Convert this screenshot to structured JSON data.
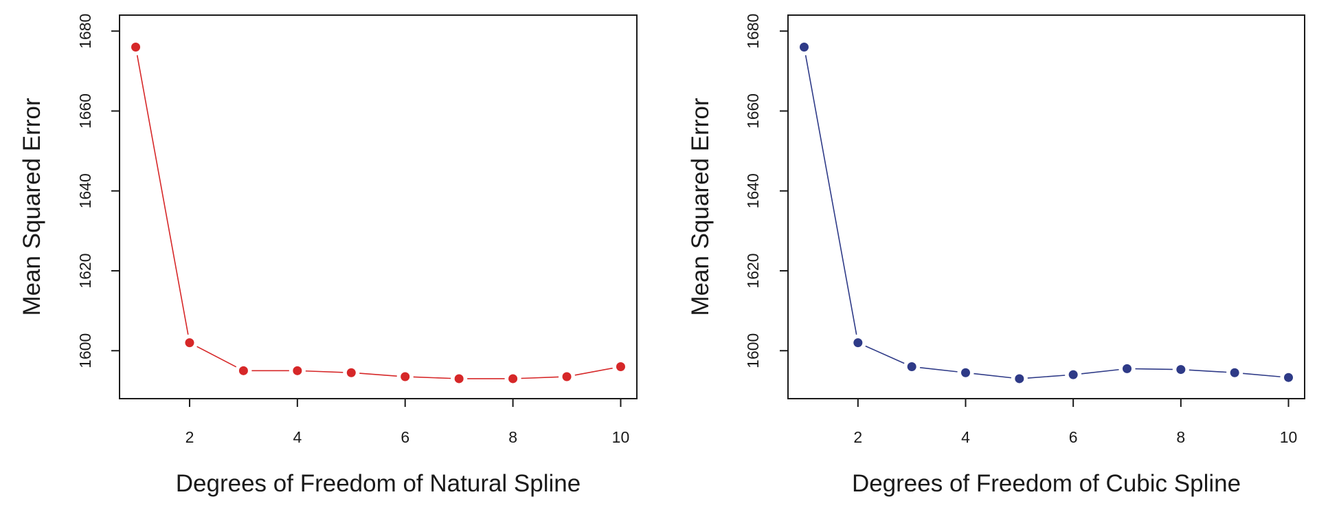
{
  "chart_data": [
    {
      "type": "line",
      "xlabel": "Degrees of Freedom of Natural Spline",
      "ylabel": "Mean Squared Error",
      "x": [
        1,
        2,
        3,
        4,
        5,
        6,
        7,
        8,
        9,
        10
      ],
      "series": [
        {
          "values": [
            1676,
            1602,
            1595,
            1595,
            1594.5,
            1593.5,
            1593,
            1593,
            1593.5,
            1596
          ],
          "color": "#d62728"
        }
      ],
      "xlim": [
        0.7,
        10.3
      ],
      "ylim": [
        1588,
        1684
      ],
      "xticks": [
        2,
        4,
        6,
        8,
        10
      ],
      "yticks": [
        1600,
        1620,
        1640,
        1660,
        1680
      ],
      "grid": false,
      "legend": "none"
    },
    {
      "type": "line",
      "xlabel": "Degrees of Freedom of Cubic Spline",
      "ylabel": "Mean Squared Error",
      "x": [
        1,
        2,
        3,
        4,
        5,
        6,
        7,
        8,
        9,
        10
      ],
      "series": [
        {
          "values": [
            1676,
            1602,
            1596,
            1594.5,
            1593,
            1594,
            1595.5,
            1595.3,
            1594.5,
            1593.3
          ],
          "color": "#2e3a87"
        }
      ],
      "xlim": [
        0.7,
        10.3
      ],
      "ylim": [
        1588,
        1684
      ],
      "xticks": [
        2,
        4,
        6,
        8,
        10
      ],
      "yticks": [
        1600,
        1620,
        1640,
        1660,
        1680
      ],
      "grid": false,
      "legend": "none"
    }
  ]
}
